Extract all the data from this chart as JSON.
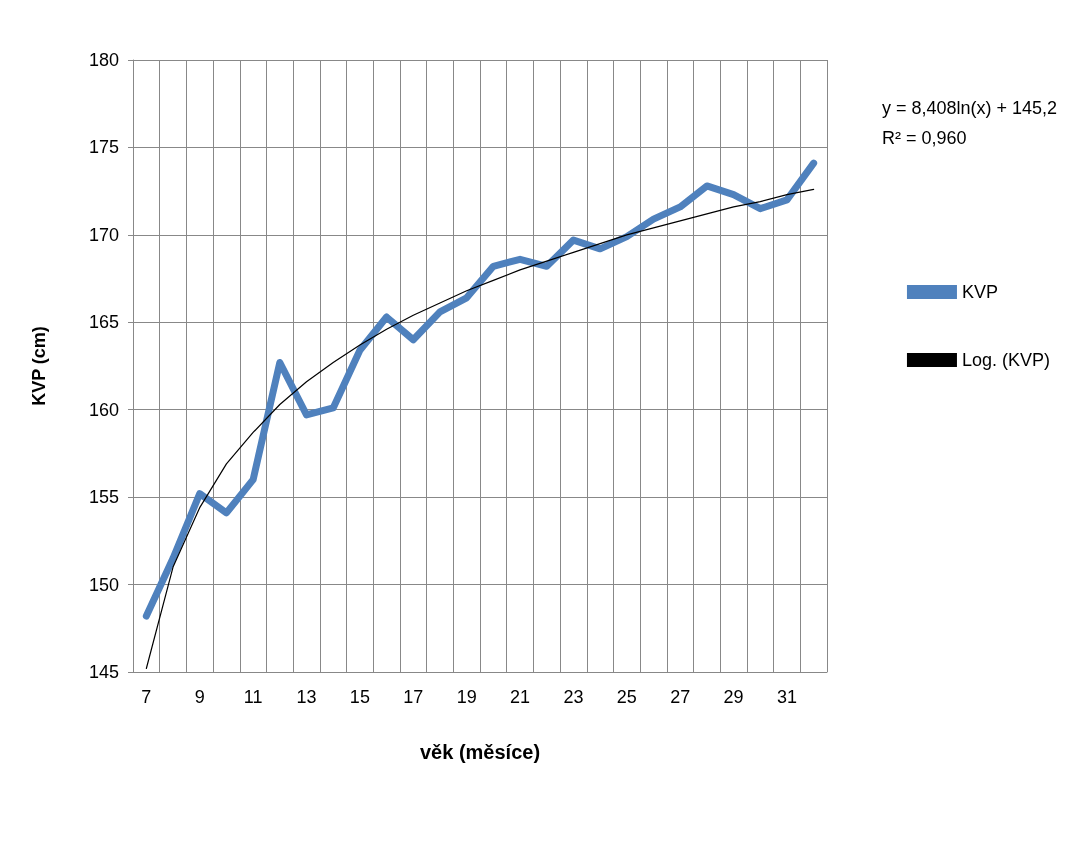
{
  "chart_data": {
    "type": "line",
    "xlabel": "věk (měsíce)",
    "ylabel": "KVP (cm)",
    "categories": [
      "7",
      null,
      "9",
      null,
      "11",
      null,
      "13",
      null,
      "15",
      null,
      "17",
      null,
      "19",
      null,
      "21",
      null,
      "23",
      null,
      "25",
      null,
      "27",
      null,
      "29",
      null,
      "31",
      null
    ],
    "series": [
      {
        "name": "KVP",
        "color": "#4f81bd",
        "values": [
          148.2,
          151.5,
          155.2,
          154.1,
          156.0,
          162.7,
          159.7,
          160.1,
          163.4,
          165.3,
          164.0,
          165.6,
          166.4,
          168.2,
          168.6,
          168.2,
          169.7,
          169.2,
          169.9,
          170.9,
          171.6,
          172.8,
          172.3,
          171.5,
          172.0,
          174.1
        ]
      },
      {
        "name": "Log. (KVP)",
        "color": "#000000",
        "values": [
          145.2,
          151.0,
          154.4,
          156.9,
          158.7,
          160.3,
          161.6,
          162.7,
          163.7,
          164.6,
          165.4,
          166.1,
          166.8,
          167.4,
          168.0,
          168.5,
          169.0,
          169.5,
          170.0,
          170.4,
          170.8,
          171.2,
          171.6,
          171.9,
          172.3,
          172.6
        ]
      }
    ],
    "ylim": [
      145,
      180
    ],
    "yticks": [
      145,
      150,
      155,
      160,
      165,
      170,
      175,
      180
    ],
    "grid": true,
    "legend": "right",
    "annotations": [
      "y = 8,408ln(x) + 145,2\nR² = 0,960"
    ]
  }
}
